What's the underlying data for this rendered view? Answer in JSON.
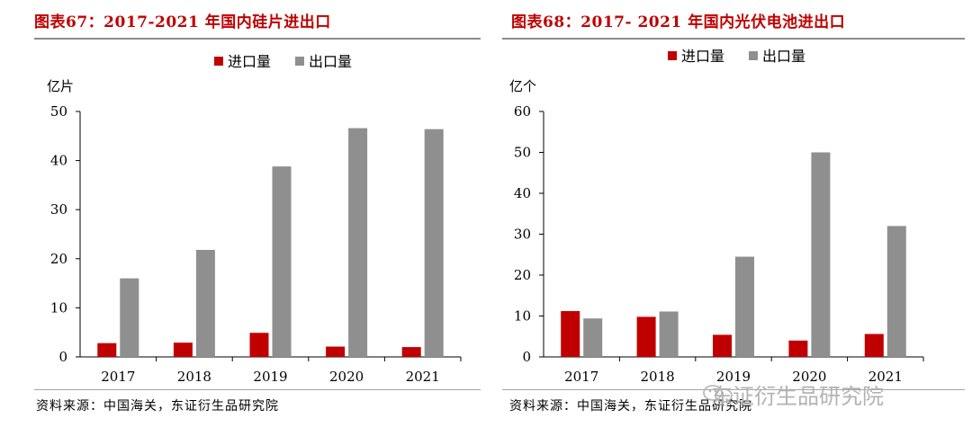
{
  "charts": [
    {
      "title": "图表67：2017-2021 年国内硅片进出口",
      "source": "资料来源：中国海关，东证衍生品研究院",
      "chart_data": {
        "type": "bar",
        "categories": [
          "2017",
          "2018",
          "2019",
          "2020",
          "2021"
        ],
        "series": [
          {
            "name": "进口量",
            "color": "#c00000",
            "values": [
              2.8,
              2.9,
              4.9,
              2.1,
              2.0
            ]
          },
          {
            "name": "出口量",
            "color": "#8f8f8f",
            "values": [
              16.0,
              21.8,
              38.8,
              46.6,
              46.4
            ]
          }
        ],
        "ylabel": "亿片",
        "ylim": [
          0,
          50
        ],
        "yticks": [
          "0",
          "10",
          "20",
          "30",
          "40",
          "50"
        ],
        "legend": "top-center",
        "grid": false
      }
    },
    {
      "title": "图表68：2017- 2021 年国内光伏电池进出口",
      "source": "资料来源：中国海关，东证衍生品研究院",
      "chart_data": {
        "type": "bar",
        "categories": [
          "2017",
          "2018",
          "2019",
          "2020",
          "2021"
        ],
        "series": [
          {
            "name": "进口量",
            "color": "#c00000",
            "values": [
              11.2,
              9.8,
              5.4,
              4.0,
              5.6
            ]
          },
          {
            "name": "出口量",
            "color": "#8f8f8f",
            "values": [
              9.4,
              11.1,
              24.5,
              50.0,
              32.0
            ]
          }
        ],
        "ylabel": "亿个",
        "ylim": [
          0,
          60
        ],
        "yticks": [
          "0",
          "10",
          "20",
          "30",
          "40",
          "50",
          "60"
        ],
        "legend": "top-center",
        "grid": false
      }
    }
  ],
  "watermark": {
    "text": "东证衍生品研究院",
    "icon": "wechat-icon"
  }
}
